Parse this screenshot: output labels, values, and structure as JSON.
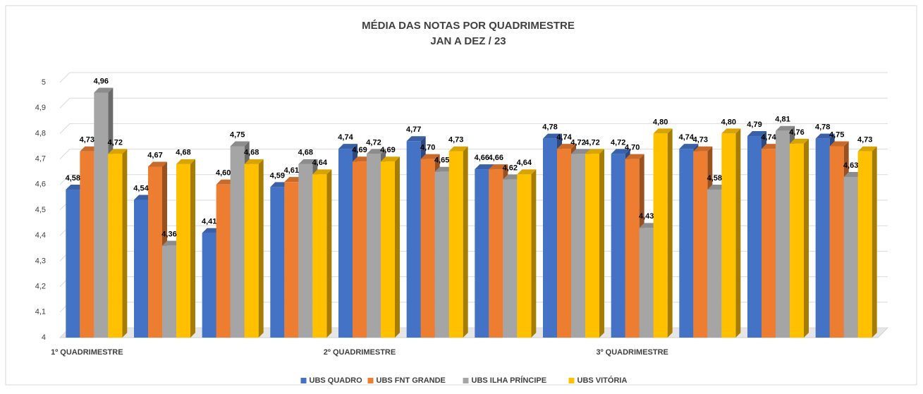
{
  "chart_data": {
    "type": "bar3d",
    "title": "MÉDIA DAS NOTAS POR QUADRIMESTRE",
    "subtitle": "JAN A DEZ / 23",
    "categories": [
      "1º QUADRIMESTRE",
      null,
      null,
      null,
      "2º QUADRIMESTRE",
      null,
      null,
      null,
      "3º QUADRIMESTRE",
      null,
      null,
      null
    ],
    "series": [
      {
        "name": "UBS QUADRO",
        "color": "#4472c4",
        "values": [
          4.58,
          4.54,
          4.41,
          4.59,
          4.74,
          4.77,
          4.66,
          4.78,
          4.72,
          4.74,
          4.79,
          4.78
        ],
        "value_labels": [
          "4,58",
          "4,54",
          "4,41",
          "4,59",
          "4,74",
          "4,77",
          "4,66",
          "4,78",
          "4,72",
          "4,74",
          "4,79",
          "4,78"
        ]
      },
      {
        "name": "UBS FNT GRANDE",
        "color": "#ed7d31",
        "values": [
          4.73,
          4.67,
          4.6,
          4.61,
          4.69,
          4.7,
          4.66,
          4.74,
          4.7,
          4.73,
          4.74,
          4.75
        ],
        "value_labels": [
          "4,73",
          "4,67",
          "4,60",
          "4,61",
          "4,69",
          "4,70",
          "4,66",
          "4,74",
          "4,70",
          "4,73",
          "4,74",
          "4,75"
        ]
      },
      {
        "name": "UBS ILHA PRÍNCIPE",
        "color": "#a5a5a5",
        "values": [
          4.96,
          4.36,
          4.75,
          4.68,
          4.72,
          4.65,
          4.62,
          4.72,
          4.43,
          4.58,
          4.81,
          4.63
        ],
        "value_labels": [
          "4,96",
          "4,36",
          "4,75",
          "4,68",
          "4,72",
          "4,65",
          "4,62",
          "4,72",
          "4,43",
          "4,58",
          "4,81",
          "4,63"
        ]
      },
      {
        "name": "UBS VITÓRIA",
        "color": "#ffc000",
        "values": [
          4.72,
          4.68,
          4.68,
          4.64,
          4.69,
          4.73,
          4.64,
          4.72,
          4.8,
          4.8,
          4.76,
          4.73
        ],
        "value_labels": [
          "4,72",
          "4,68",
          "4,68",
          "4,64",
          "4,69",
          "4,73",
          "4,64",
          "4,72",
          "4,80",
          "4,80",
          "4,76",
          "4,73"
        ]
      }
    ],
    "ylim": [
      4,
      5
    ],
    "yticks": [
      4,
      {
        "value": 4.1,
        "label": "4,1"
      },
      {
        "value": 4.2,
        "label": "4,2"
      },
      {
        "value": 4.3,
        "label": "4,3"
      },
      {
        "value": 4.4,
        "label": "4,4"
      },
      {
        "value": 4.5,
        "label": "4,5"
      },
      {
        "value": 4.6,
        "label": "4,6"
      },
      {
        "value": 4.7,
        "label": "4,7"
      },
      {
        "value": 4.8,
        "label": "4,8"
      },
      {
        "value": 4.9,
        "label": "4,9"
      },
      5
    ],
    "grid": true,
    "legend": "bottom"
  }
}
